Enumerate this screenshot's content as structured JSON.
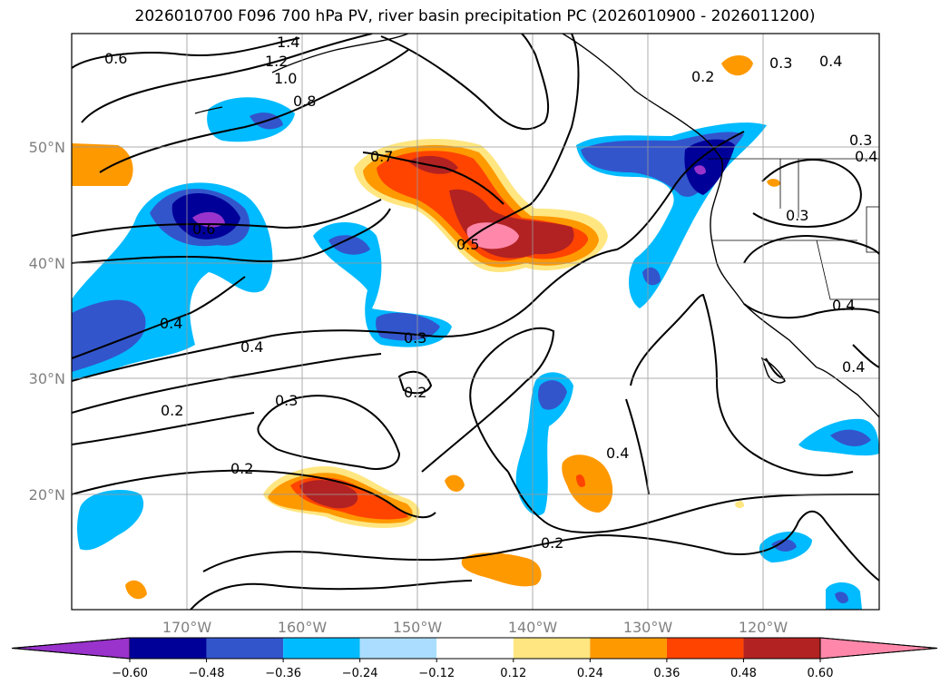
{
  "title": "2026010700 F096 700 hPa PV, river basin precipitation PC (2026010900 - 2026011200)",
  "map": {
    "lat_labels": [
      "50°N",
      "40°N",
      "30°N",
      "20°N"
    ],
    "lon_labels": [
      "170°W",
      "160°W",
      "150°W",
      "140°W",
      "130°W",
      "120°W"
    ],
    "contour_labels": [
      "0.6",
      "1.4",
      "1.2",
      "1.0",
      "0.8",
      "0.7",
      "0.6",
      "0.5",
      "0.4",
      "0.4",
      "0.3",
      "0.3",
      "0.2",
      "0.2",
      "0.3",
      "0.4",
      "0.2",
      "0.2",
      "0.3",
      "0.4",
      "0.4",
      "0.3",
      "0.4",
      "0.2",
      "0.4"
    ]
  },
  "colorbar": {
    "ticks": [
      "−0.60",
      "−0.48",
      "−0.36",
      "−0.24",
      "−0.12",
      "0.12",
      "0.24",
      "0.36",
      "0.48",
      "0.60"
    ],
    "colors": [
      "#9933cc",
      "#000099",
      "#3355cc",
      "#00bbff",
      "#aaddff",
      "#ffffff",
      "#ffe680",
      "#ff9900",
      "#ff4400",
      "#b22222",
      "#ff88aa"
    ]
  }
}
